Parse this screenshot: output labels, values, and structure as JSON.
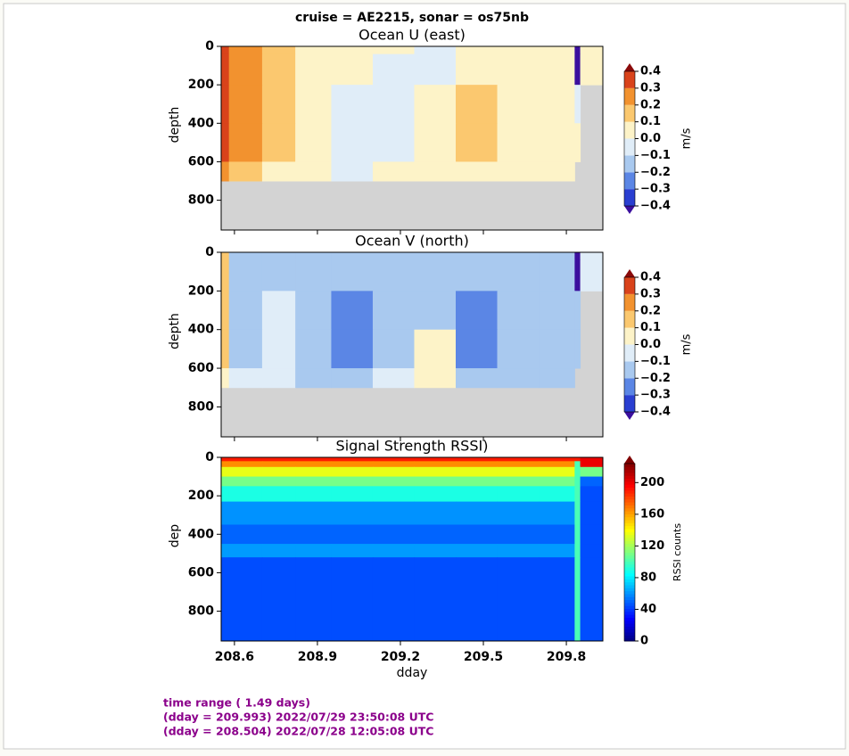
{
  "suptitle": "cruise = AE2215,  sonar = os75nb",
  "footer": [
    "time range ( 1.49 days)",
    "(dday = 209.993) 2022/07/29 23:50:08 UTC",
    "(dday = 208.504) 2022/07/28 12:05:08 UTC"
  ],
  "chart_data": [
    {
      "type": "heatmap",
      "title": "Ocean U (east)",
      "ylabel": "depth",
      "colorbar_label": "m/s",
      "x_edges": [
        208.552,
        208.58,
        208.7,
        208.82,
        208.95,
        209.1,
        209.25,
        209.4,
        209.55,
        209.7,
        209.83,
        209.85,
        209.932
      ],
      "y_edges": [
        0,
        40,
        200,
        400,
        600,
        700,
        955
      ],
      "z": [
        [
          0.3,
          0.2,
          0.1,
          0.05,
          0.05,
          0.0,
          -0.05,
          0.05,
          0.05,
          0.05,
          -0.45,
          0.05
        ],
        [
          0.35,
          0.2,
          0.15,
          0.05,
          0.0,
          -0.05,
          -0.05,
          0.05,
          0.05,
          0.05,
          -0.45,
          0.05
        ],
        [
          0.35,
          0.2,
          0.15,
          0.05,
          -0.05,
          -0.05,
          0.05,
          0.15,
          0.05,
          0.05,
          -0.05,
          null
        ],
        [
          0.35,
          0.2,
          0.15,
          0.05,
          -0.05,
          -0.05,
          0.05,
          0.15,
          0.05,
          0.05,
          0.05,
          null
        ],
        [
          0.25,
          0.15,
          0.05,
          0.05,
          -0.05,
          0.0,
          0.05,
          0.05,
          0.05,
          0.05,
          null,
          null
        ],
        [
          null,
          null,
          null,
          null,
          null,
          null,
          null,
          null,
          null,
          null,
          null,
          null
        ]
      ],
      "xlim": [
        208.552,
        209.932
      ],
      "xticks": [
        208.6,
        208.9,
        209.2,
        209.5,
        209.8
      ],
      "ylim": [
        955,
        0
      ],
      "yticks": [
        0,
        200,
        400,
        600,
        800
      ],
      "colormap": "levels",
      "levels": [
        -0.4,
        -0.3,
        -0.2,
        -0.1,
        0,
        0.1,
        0.2,
        0.3,
        0.4
      ],
      "colors": [
        "#3b0f9e",
        "#2a3fd1",
        "#5b86e5",
        "#a9c9ef",
        "#e0edf8",
        "#fdf3c8",
        "#fbc86f",
        "#f2922f",
        "#d9431b",
        "#8a0a0a"
      ],
      "nodata_color": "#d3d3d3",
      "colorbar_ticks": [
        {
          "value": -0.4,
          "label": "−0.4"
        },
        {
          "value": -0.3,
          "label": "−0.3"
        },
        {
          "value": -0.2,
          "label": "−0.2"
        },
        {
          "value": -0.1,
          "label": "−0.1"
        },
        {
          "value": 0,
          "label": "0.0"
        },
        0.1,
        0.2,
        0.3,
        0.4
      ]
    },
    {
      "type": "heatmap",
      "title": "Ocean V (north)",
      "ylabel": "depth",
      "colorbar_label": "m/s",
      "x_edges": [
        208.552,
        208.58,
        208.7,
        208.82,
        208.95,
        209.1,
        209.25,
        209.4,
        209.55,
        209.7,
        209.83,
        209.85,
        209.932
      ],
      "y_edges": [
        0,
        40,
        200,
        400,
        600,
        700,
        955
      ],
      "z": [
        [
          0.15,
          -0.2,
          -0.15,
          -0.15,
          -0.2,
          -0.15,
          -0.15,
          -0.2,
          -0.15,
          -0.15,
          -0.45,
          -0.05
        ],
        [
          0.15,
          -0.15,
          -0.15,
          -0.15,
          -0.2,
          -0.15,
          -0.15,
          -0.2,
          -0.15,
          -0.15,
          -0.45,
          -0.05
        ],
        [
          0.15,
          -0.15,
          -0.05,
          -0.15,
          -0.25,
          -0.15,
          -0.15,
          -0.25,
          -0.15,
          -0.15,
          -0.15,
          null
        ],
        [
          0.1,
          -0.15,
          -0.05,
          -0.15,
          -0.25,
          -0.15,
          0.05,
          -0.25,
          -0.15,
          -0.15,
          -0.15,
          null
        ],
        [
          0.05,
          -0.05,
          -0.05,
          -0.15,
          -0.15,
          -0.05,
          0.05,
          -0.15,
          -0.15,
          -0.15,
          null,
          null
        ],
        [
          null,
          null,
          null,
          null,
          null,
          null,
          null,
          null,
          null,
          null,
          null,
          null
        ]
      ],
      "xlim": [
        208.552,
        209.932
      ],
      "xticks": [
        208.6,
        208.9,
        209.2,
        209.5,
        209.8
      ],
      "ylim": [
        955,
        0
      ],
      "yticks": [
        0,
        200,
        400,
        600,
        800
      ],
      "colormap": "levels",
      "levels": [
        -0.4,
        -0.3,
        -0.2,
        -0.1,
        0,
        0.1,
        0.2,
        0.3,
        0.4
      ],
      "colors": [
        "#3b0f9e",
        "#2a3fd1",
        "#5b86e5",
        "#a9c9ef",
        "#e0edf8",
        "#fdf3c8",
        "#fbc86f",
        "#f2922f",
        "#d9431b",
        "#8a0a0a"
      ],
      "nodata_color": "#d3d3d3",
      "colorbar_ticks": [
        {
          "value": -0.4,
          "label": "−0.4"
        },
        {
          "value": -0.3,
          "label": "−0.3"
        },
        {
          "value": -0.2,
          "label": "−0.2"
        },
        {
          "value": -0.1,
          "label": "−0.1"
        },
        {
          "value": 0,
          "label": "0.0"
        },
        0.1,
        0.2,
        0.3,
        0.4
      ]
    },
    {
      "type": "heatmap",
      "title": "Signal Strength RSSI)",
      "ylabel": "dep",
      "xlabel": "dday",
      "colorbar_label": "RSSI counts",
      "x_edges": [
        208.552,
        208.58,
        208.7,
        208.82,
        208.95,
        209.1,
        209.25,
        209.4,
        209.55,
        209.7,
        209.83,
        209.85,
        209.932
      ],
      "y_edges": [
        0,
        20,
        50,
        100,
        150,
        230,
        350,
        450,
        520,
        955
      ],
      "z": [
        [
          190,
          190,
          190,
          190,
          190,
          190,
          190,
          190,
          190,
          190,
          190,
          200
        ],
        [
          165,
          165,
          165,
          165,
          165,
          165,
          165,
          165,
          165,
          165,
          100,
          200
        ],
        [
          135,
          135,
          135,
          135,
          135,
          135,
          135,
          135,
          135,
          135,
          100,
          110
        ],
        [
          110,
          110,
          110,
          110,
          110,
          110,
          110,
          110,
          110,
          110,
          100,
          50
        ],
        [
          90,
          90,
          90,
          90,
          90,
          90,
          90,
          90,
          90,
          90,
          100,
          45
        ],
        [
          60,
          60,
          60,
          60,
          60,
          60,
          60,
          60,
          60,
          60,
          100,
          45
        ],
        [
          50,
          50,
          50,
          50,
          50,
          50,
          50,
          50,
          50,
          50,
          100,
          45
        ],
        [
          62,
          62,
          62,
          62,
          62,
          62,
          62,
          62,
          62,
          62,
          100,
          45
        ],
        [
          45,
          45,
          45,
          45,
          45,
          45,
          45,
          45,
          45,
          45,
          100,
          45
        ]
      ],
      "xlim": [
        208.552,
        209.932
      ],
      "xticks": [
        208.6,
        208.9,
        209.2,
        209.5,
        209.8
      ],
      "ylim": [
        955,
        0
      ],
      "yticks": [
        0,
        200,
        400,
        600,
        800
      ],
      "colormap": "jet",
      "clim": [
        0,
        224
      ],
      "over_color": "#7f0000",
      "colorbar_ticks": [
        0,
        40,
        80,
        120,
        160,
        200
      ]
    }
  ]
}
